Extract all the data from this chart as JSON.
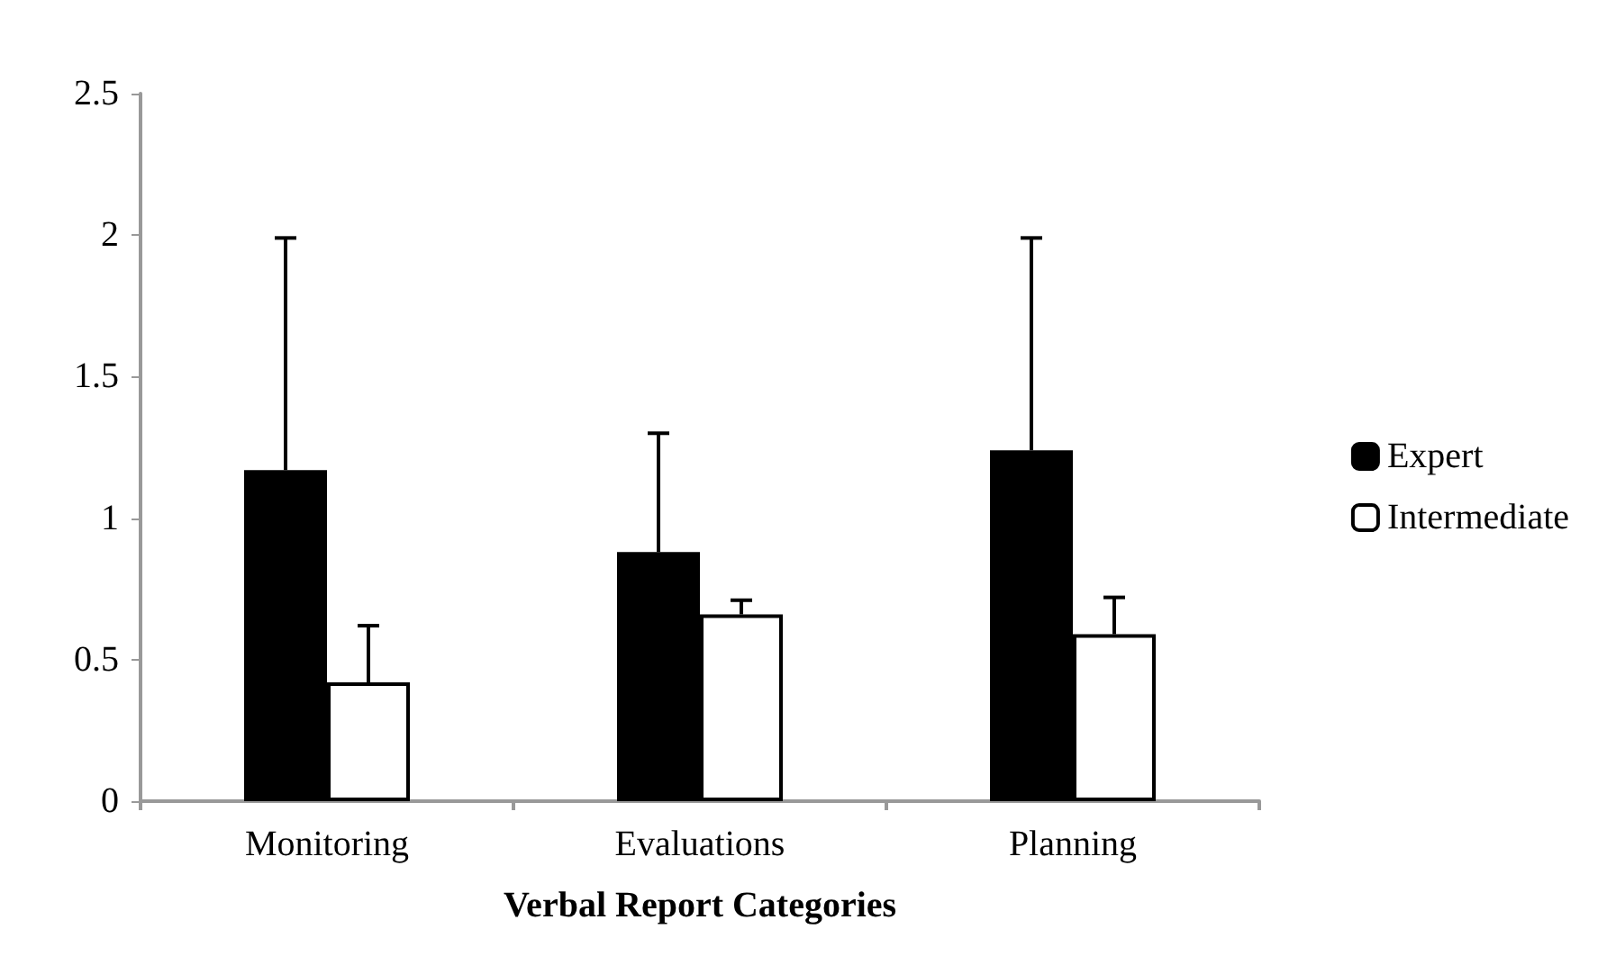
{
  "chart_data": {
    "type": "bar",
    "xlabel": "Verbal Report Categories",
    "categories": [
      "Monitoring",
      "Evaluations",
      "Planning"
    ],
    "series": [
      {
        "name": "Expert",
        "color": "#000000",
        "values": [
          1.17,
          0.88,
          1.24
        ],
        "errors": [
          [
            1.17,
            1.99
          ],
          [
            0.88,
            1.3
          ],
          [
            1.24,
            1.99
          ]
        ]
      },
      {
        "name": "Intermediate",
        "color": "#ffffff",
        "values": [
          0.42,
          0.66,
          0.59
        ],
        "errors": [
          [
            0.42,
            0.62
          ],
          [
            0.66,
            0.71
          ],
          [
            0.59,
            0.72
          ]
        ]
      }
    ],
    "ylim": [
      0,
      2.5
    ],
    "yticks": [
      0,
      0.5,
      1,
      1.5,
      2,
      2.5
    ],
    "grid": false,
    "legend": "right"
  }
}
